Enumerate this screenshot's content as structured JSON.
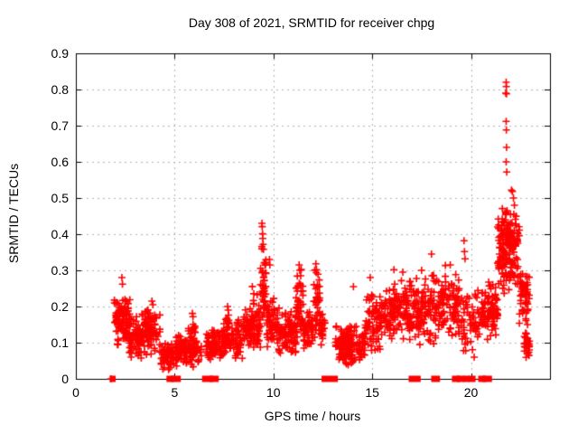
{
  "colors": {
    "points": "#ff0000",
    "grid": "#b4b4b4",
    "border": "#000000",
    "background": "#ffffff",
    "text": "#000000"
  },
  "chart_data": {
    "type": "scatter",
    "title": "Day 308 of 2021, SRMTID for receiver chpg",
    "xlabel": "GPS time / hours",
    "ylabel": "SRMTID / TECUs",
    "marker": "plus",
    "marker_color": "#ff0000",
    "grid": true,
    "legend": "none",
    "xlim": [
      0,
      24
    ],
    "ylim": [
      0,
      0.9
    ],
    "xticks": [
      0,
      5,
      10,
      15,
      20
    ],
    "xtick_labels": [
      "0",
      "5",
      "10",
      "15",
      "20"
    ],
    "yticks": [
      0,
      0.1,
      0.2,
      0.3,
      0.4,
      0.5,
      0.6,
      0.7,
      0.8,
      0.9
    ],
    "ytick_labels": [
      "0",
      "0.1",
      "0.2",
      "0.3",
      "0.4",
      "0.5",
      "0.6",
      "0.7",
      "0.8",
      "0.9"
    ],
    "seed": 7,
    "clusters": [
      {
        "x0": 1.95,
        "x1": 2.75,
        "lo": 0.08,
        "hi": 0.235,
        "n": 110
      },
      {
        "x0": 2.7,
        "x1": 3.35,
        "lo": 0.055,
        "hi": 0.175,
        "n": 70
      },
      {
        "x0": 3.35,
        "x1": 4.25,
        "lo": 0.06,
        "hi": 0.2,
        "n": 85
      },
      {
        "x0": 4.25,
        "x1": 5.05,
        "lo": 0.02,
        "hi": 0.105,
        "n": 55
      },
      {
        "x0": 5.05,
        "x1": 6.35,
        "lo": 0.025,
        "hi": 0.13,
        "n": 110
      },
      {
        "x0": 5.7,
        "x1": 6.05,
        "lo": 0.09,
        "hi": 0.18,
        "n": 15
      },
      {
        "x0": 6.6,
        "x1": 7.45,
        "lo": 0.04,
        "hi": 0.15,
        "n": 75
      },
      {
        "x0": 7.45,
        "x1": 8.45,
        "lo": 0.05,
        "hi": 0.17,
        "n": 85
      },
      {
        "x0": 7.6,
        "x1": 7.78,
        "lo": 0.12,
        "hi": 0.2,
        "n": 8
      },
      {
        "x0": 8.45,
        "x1": 9.35,
        "lo": 0.07,
        "hi": 0.21,
        "n": 85
      },
      {
        "x0": 8.9,
        "x1": 9.3,
        "lo": 0.13,
        "hi": 0.26,
        "n": 12
      },
      {
        "x0": 9.35,
        "x1": 9.65,
        "lo": 0.14,
        "hi": 0.38,
        "n": 45
      },
      {
        "x0": 9.65,
        "x1": 10.25,
        "lo": 0.08,
        "hi": 0.23,
        "n": 55
      },
      {
        "x0": 10.25,
        "x1": 11.15,
        "lo": 0.05,
        "hi": 0.21,
        "n": 95
      },
      {
        "x0": 11.15,
        "x1": 11.5,
        "lo": 0.1,
        "hi": 0.31,
        "n": 45
      },
      {
        "x0": 11.5,
        "x1": 12.05,
        "lo": 0.07,
        "hi": 0.2,
        "n": 50
      },
      {
        "x0": 12.05,
        "x1": 12.35,
        "lo": 0.1,
        "hi": 0.32,
        "n": 40
      },
      {
        "x0": 12.35,
        "x1": 12.6,
        "lo": 0.08,
        "hi": 0.2,
        "n": 20
      },
      {
        "x0": 13.15,
        "x1": 14.65,
        "lo": 0.035,
        "hi": 0.155,
        "n": 150
      },
      {
        "x0": 14.65,
        "x1": 15.45,
        "lo": 0.07,
        "hi": 0.24,
        "n": 75
      },
      {
        "x0": 15.45,
        "x1": 16.45,
        "lo": 0.1,
        "hi": 0.27,
        "n": 95
      },
      {
        "x0": 16.45,
        "x1": 17.35,
        "lo": 0.1,
        "hi": 0.3,
        "n": 90
      },
      {
        "x0": 17.35,
        "x1": 18.45,
        "lo": 0.08,
        "hi": 0.3,
        "n": 95
      },
      {
        "x0": 18.45,
        "x1": 19.45,
        "lo": 0.1,
        "hi": 0.32,
        "n": 90
      },
      {
        "x0": 19.5,
        "x1": 20.35,
        "lo": 0.05,
        "hi": 0.25,
        "n": 55
      },
      {
        "x0": 20.35,
        "x1": 21.35,
        "lo": 0.1,
        "hi": 0.28,
        "n": 95
      },
      {
        "x0": 21.35,
        "x1": 22.45,
        "lo": 0.22,
        "hi": 0.5,
        "n": 130
      },
      {
        "x0": 21.55,
        "x1": 22.25,
        "lo": 0.3,
        "hi": 0.47,
        "n": 40
      },
      {
        "x0": 22.45,
        "x1": 22.95,
        "lo": 0.14,
        "hi": 0.3,
        "n": 55
      },
      {
        "x0": 22.7,
        "x1": 23.0,
        "lo": 0.05,
        "hi": 0.14,
        "n": 30
      }
    ],
    "outliers": [
      [
        1.78,
        0
      ],
      [
        2.33,
        0.28
      ],
      [
        2.36,
        0.262
      ],
      [
        3.85,
        0.215
      ],
      [
        3.9,
        0.205
      ],
      [
        5.9,
        0.181
      ],
      [
        5.93,
        0.172
      ],
      [
        7.68,
        0.2
      ],
      [
        7.71,
        0.19
      ],
      [
        9.42,
        0.43
      ],
      [
        9.43,
        0.421
      ],
      [
        9.45,
        0.401
      ],
      [
        9.46,
        0.388
      ],
      [
        9.48,
        0.372
      ],
      [
        9.5,
        0.358
      ],
      [
        9.8,
        0.33
      ],
      [
        9.82,
        0.315
      ],
      [
        11.3,
        0.315
      ],
      [
        11.33,
        0.3
      ],
      [
        12.15,
        0.318
      ],
      [
        12.18,
        0.302
      ],
      [
        14.05,
        0.255
      ],
      [
        14.9,
        0.28
      ],
      [
        16.1,
        0.302
      ],
      [
        16.55,
        0.295
      ],
      [
        17.5,
        0.3
      ],
      [
        18.0,
        0.345
      ],
      [
        18.95,
        0.315
      ],
      [
        19.65,
        0.382
      ],
      [
        19.67,
        0.352
      ],
      [
        19.7,
        0.332
      ],
      [
        21.35,
        0.42
      ],
      [
        21.38,
        0.442
      ],
      [
        21.78,
        0.82
      ],
      [
        21.79,
        0.808
      ],
      [
        21.76,
        0.79
      ],
      [
        21.8,
        0.788
      ],
      [
        21.78,
        0.712
      ],
      [
        21.79,
        0.688
      ],
      [
        21.8,
        0.64
      ],
      [
        21.78,
        0.6
      ],
      [
        21.81,
        0.572
      ],
      [
        22.05,
        0.522
      ],
      [
        22.1,
        0.518
      ],
      [
        22.15,
        0.5
      ],
      [
        22.2,
        0.48
      ]
    ],
    "zero_runs": [
      [
        1.82,
        1.9
      ],
      [
        4.7,
        4.86
      ],
      [
        4.93,
        5.2
      ],
      [
        6.5,
        6.82
      ],
      [
        6.88,
        7.12
      ],
      [
        12.55,
        13.15
      ],
      [
        16.96,
        17.34
      ],
      [
        18.1,
        18.32
      ],
      [
        19.15,
        19.32
      ],
      [
        19.4,
        19.56
      ],
      [
        19.72,
        19.82
      ],
      [
        19.98,
        20.12
      ],
      [
        20.48,
        20.64
      ],
      [
        20.7,
        20.95
      ]
    ]
  }
}
